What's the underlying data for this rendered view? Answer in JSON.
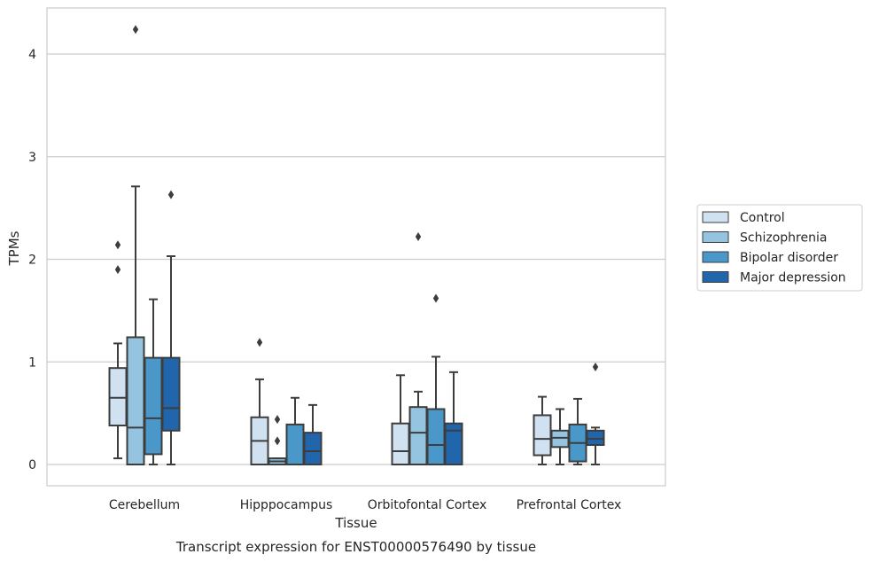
{
  "chart_data": {
    "type": "box",
    "title": "",
    "caption": "Transcript expression for ENST00000576490 by tissue",
    "xlabel": "Tissue",
    "ylabel": "TPMs",
    "ylim": [
      -0.2,
      4.45
    ],
    "yticks": [
      0,
      1,
      2,
      3,
      4
    ],
    "grid": true,
    "legend_position": "right",
    "categories": [
      "Cerebellum",
      "Hipppocampus",
      "Orbitofontal Cortex",
      "Prefrontal Cortex"
    ],
    "series": [
      {
        "name": "Control",
        "color": "#d0e1f2",
        "boxes": [
          {
            "whislo": 0.06,
            "q1": 0.38,
            "med": 0.65,
            "q3": 0.94,
            "whishi": 1.18,
            "fliers": [
              1.9,
              2.14
            ]
          },
          {
            "whislo": 0.0,
            "q1": 0.0,
            "med": 0.23,
            "q3": 0.46,
            "whishi": 0.83,
            "fliers": [
              1.19
            ]
          },
          {
            "whislo": 0.0,
            "q1": 0.0,
            "med": 0.13,
            "q3": 0.4,
            "whishi": 0.87,
            "fliers": []
          },
          {
            "whislo": 0.0,
            "q1": 0.09,
            "med": 0.25,
            "q3": 0.48,
            "whishi": 0.66,
            "fliers": []
          }
        ]
      },
      {
        "name": "Schizophrenia",
        "color": "#94c4df",
        "boxes": [
          {
            "whislo": 0.0,
            "q1": 0.0,
            "med": 0.36,
            "q3": 1.24,
            "whishi": 2.71,
            "fliers": [
              4.24
            ]
          },
          {
            "whislo": 0.0,
            "q1": 0.0,
            "med": 0.03,
            "q3": 0.06,
            "whishi": 0.06,
            "fliers": [
              0.23,
              0.44
            ]
          },
          {
            "whislo": 0.0,
            "q1": 0.0,
            "med": 0.31,
            "q3": 0.56,
            "whishi": 0.71,
            "fliers": [
              2.22
            ]
          },
          {
            "whislo": 0.0,
            "q1": 0.17,
            "med": 0.26,
            "q3": 0.33,
            "whishi": 0.54,
            "fliers": []
          }
        ]
      },
      {
        "name": "Bipolar disorder",
        "color": "#4a98c9",
        "boxes": [
          {
            "whislo": 0.0,
            "q1": 0.1,
            "med": 0.45,
            "q3": 1.04,
            "whishi": 1.61,
            "fliers": []
          },
          {
            "whislo": 0.0,
            "q1": 0.0,
            "med": 0.0,
            "q3": 0.39,
            "whishi": 0.65,
            "fliers": []
          },
          {
            "whislo": 0.0,
            "q1": 0.0,
            "med": 0.19,
            "q3": 0.54,
            "whishi": 1.05,
            "fliers": [
              1.62
            ]
          },
          {
            "whislo": 0.0,
            "q1": 0.03,
            "med": 0.21,
            "q3": 0.39,
            "whishi": 0.64,
            "fliers": []
          }
        ]
      },
      {
        "name": "Major depression",
        "color": "#2166ac",
        "boxes": [
          {
            "whislo": 0.0,
            "q1": 0.33,
            "med": 0.55,
            "q3": 1.04,
            "whishi": 2.03,
            "fliers": [
              2.63
            ]
          },
          {
            "whislo": 0.0,
            "q1": 0.0,
            "med": 0.13,
            "q3": 0.31,
            "whishi": 0.58,
            "fliers": []
          },
          {
            "whislo": 0.0,
            "q1": 0.0,
            "med": 0.33,
            "q3": 0.4,
            "whishi": 0.9,
            "fliers": []
          },
          {
            "whislo": 0.0,
            "q1": 0.19,
            "med": 0.25,
            "q3": 0.33,
            "whishi": 0.36,
            "fliers": [
              0.95
            ]
          }
        ]
      }
    ]
  }
}
